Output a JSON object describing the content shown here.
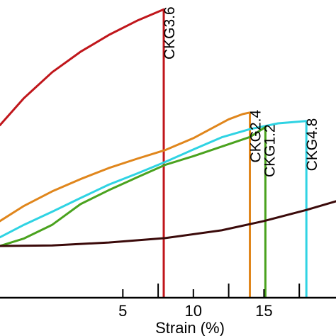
{
  "chart_data": {
    "type": "line",
    "title": "",
    "xlabel": "Strain (%)",
    "ylabel": "",
    "xlim": [
      -3.7,
      20.1
    ],
    "ylim": [
      0,
      1
    ],
    "x_ticks": [
      5,
      10,
      15
    ],
    "x_minor_ticks": [
      7.5,
      12.5,
      17.5
    ],
    "grid": false,
    "legend": "none",
    "series": [
      {
        "name": "CKG3.6",
        "color": "#c0161b",
        "label_at_x": 8.2,
        "label_rotation": "vertical",
        "x": [
          -3.7,
          -2,
          0,
          2,
          4,
          6,
          7.9
        ],
        "y": [
          0.594,
          0.687,
          0.776,
          0.846,
          0.904,
          0.953,
          0.992
        ],
        "drop_to": 0.0
      },
      {
        "name": "CKG2.4",
        "color": "#e0861c",
        "label_at_x": 14.3,
        "label_rotation": "vertical",
        "x": [
          -3.7,
          -2,
          0,
          2,
          4,
          6,
          8,
          10,
          11.5,
          12.5,
          13.5,
          14
        ],
        "y": [
          0.264,
          0.316,
          0.366,
          0.408,
          0.446,
          0.478,
          0.508,
          0.549,
          0.588,
          0.614,
          0.632,
          0.637
        ],
        "drop_to": 0.0
      },
      {
        "name": "CKG4.8",
        "color": "#2fd3e3",
        "label_at_x": 18.3,
        "label_rotation": "vertical",
        "x": [
          -3.7,
          -2,
          0,
          2,
          4,
          6,
          8,
          10,
          12,
          14,
          16,
          18
        ],
        "y": [
          0.208,
          0.251,
          0.296,
          0.343,
          0.389,
          0.427,
          0.467,
          0.51,
          0.552,
          0.58,
          0.6,
          0.608
        ],
        "drop_to": 0.0
      },
      {
        "name": "CKG1.2",
        "color": "#4aa21e",
        "label_at_x": 15.3,
        "label_rotation": "vertical",
        "x": [
          -3.7,
          -2,
          0,
          2,
          4,
          6,
          8,
          10,
          12,
          14,
          15.1
        ],
        "y": [
          0.178,
          0.204,
          0.251,
          0.322,
          0.37,
          0.414,
          0.457,
          0.487,
          0.52,
          0.553,
          0.587
        ],
        "drop_to": 0.0
      },
      {
        "name": "",
        "color": "#3b0a0a",
        "x": [
          -3.7,
          0,
          4,
          8,
          12,
          15,
          18,
          20.1
        ],
        "y": [
          0.178,
          0.18,
          0.19,
          0.205,
          0.232,
          0.264,
          0.302,
          0.332
        ],
        "drop_to": null
      }
    ]
  }
}
